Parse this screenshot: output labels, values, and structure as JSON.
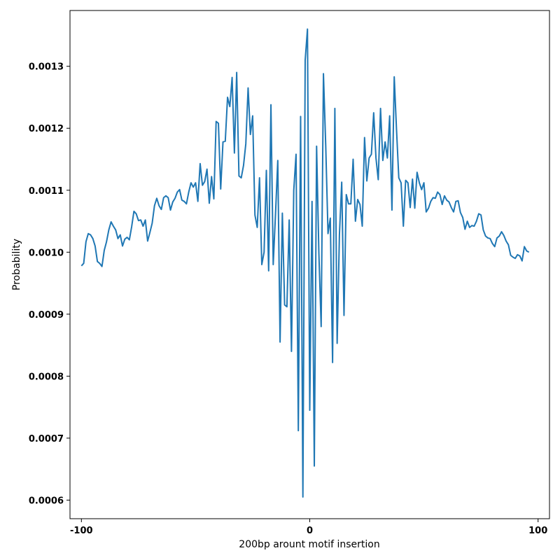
{
  "chart_data": {
    "type": "line",
    "title": "",
    "xlabel": "200bp arount motif insertion",
    "ylabel": "Probability",
    "xlim": [
      -105,
      105
    ],
    "ylim": [
      0.00057,
      0.00139
    ],
    "x_ticks": [
      -100,
      0,
      100
    ],
    "x_tick_labels": [
      "-100",
      "0",
      "100"
    ],
    "y_ticks": [
      0.0006,
      0.0007,
      0.0008,
      0.0009,
      0.001,
      0.0011,
      0.0012,
      0.0013
    ],
    "y_tick_labels": [
      "0.0006",
      "0.0007",
      "0.0008",
      "0.0009",
      "0.0010",
      "0.0011",
      "0.0012",
      "0.0013"
    ],
    "grid": false,
    "legend": "none",
    "series_color": "#1f77b4",
    "x_start": -100,
    "x_step": 1,
    "series": [
      {
        "values": [
          0.000978,
          0.000982,
          0.001017,
          0.00103,
          0.001028,
          0.001022,
          0.00101,
          0.000985,
          0.000982,
          0.000977,
          0.001003,
          0.001017,
          0.001036,
          0.001049,
          0.001042,
          0.001036,
          0.001022,
          0.001028,
          0.00101,
          0.001021,
          0.001024,
          0.00102,
          0.001041,
          0.001066,
          0.001062,
          0.001051,
          0.001052,
          0.001042,
          0.001052,
          0.001018,
          0.001032,
          0.001047,
          0.001075,
          0.001087,
          0.001075,
          0.001069,
          0.001088,
          0.001091,
          0.001088,
          0.001068,
          0.001081,
          0.001087,
          0.001097,
          0.001101,
          0.001084,
          0.001082,
          0.001078,
          0.001097,
          0.001112,
          0.001105,
          0.001112,
          0.001082,
          0.001143,
          0.001108,
          0.001114,
          0.001134,
          0.001079,
          0.001122,
          0.001086,
          0.001211,
          0.001208,
          0.001102,
          0.001178,
          0.001179,
          0.00125,
          0.001235,
          0.001282,
          0.00116,
          0.00129,
          0.001123,
          0.00112,
          0.00114,
          0.001175,
          0.001265,
          0.00119,
          0.00122,
          0.00106,
          0.00104,
          0.00112,
          0.00098,
          0.001,
          0.001132,
          0.00097,
          0.001238,
          0.00098,
          0.001061,
          0.001148,
          0.000855,
          0.001063,
          0.000915,
          0.000912,
          0.001052,
          0.00084,
          0.0011,
          0.001158,
          0.000712,
          0.001219,
          0.000605,
          0.00131,
          0.00136,
          0.000745,
          0.001082,
          0.000655,
          0.001171,
          0.000998,
          0.00088,
          0.001288,
          0.001172,
          0.00103,
          0.001055,
          0.000822,
          0.001232,
          0.000853,
          0.001028,
          0.001113,
          0.000898,
          0.001093,
          0.001078,
          0.001078,
          0.00115,
          0.00105,
          0.001085,
          0.001077,
          0.001042,
          0.001185,
          0.001115,
          0.001152,
          0.001158,
          0.001225,
          0.001152,
          0.001117,
          0.001232,
          0.001148,
          0.001178,
          0.001152,
          0.00122,
          0.001068,
          0.001283,
          0.001198,
          0.00112,
          0.001112,
          0.001042,
          0.001116,
          0.001112,
          0.001072,
          0.001118,
          0.001071,
          0.001129,
          0.001112,
          0.001101,
          0.001112,
          0.001065,
          0.001071,
          0.001082,
          0.001088,
          0.001087,
          0.001097,
          0.001093,
          0.001077,
          0.001091,
          0.001084,
          0.001081,
          0.001072,
          0.001065,
          0.001082,
          0.001083,
          0.001064,
          0.001056,
          0.001037,
          0.00105,
          0.00104,
          0.001043,
          0.001042,
          0.00105,
          0.001062,
          0.00106,
          0.001036,
          0.001026,
          0.001023,
          0.001022,
          0.001014,
          0.001009,
          0.001023,
          0.001026,
          0.001033,
          0.001027,
          0.001018,
          0.001012,
          0.000995,
          0.000992,
          0.00099,
          0.000996,
          0.000994,
          0.000986,
          0.001009,
          0.001002,
          0.001
        ]
      }
    ]
  }
}
